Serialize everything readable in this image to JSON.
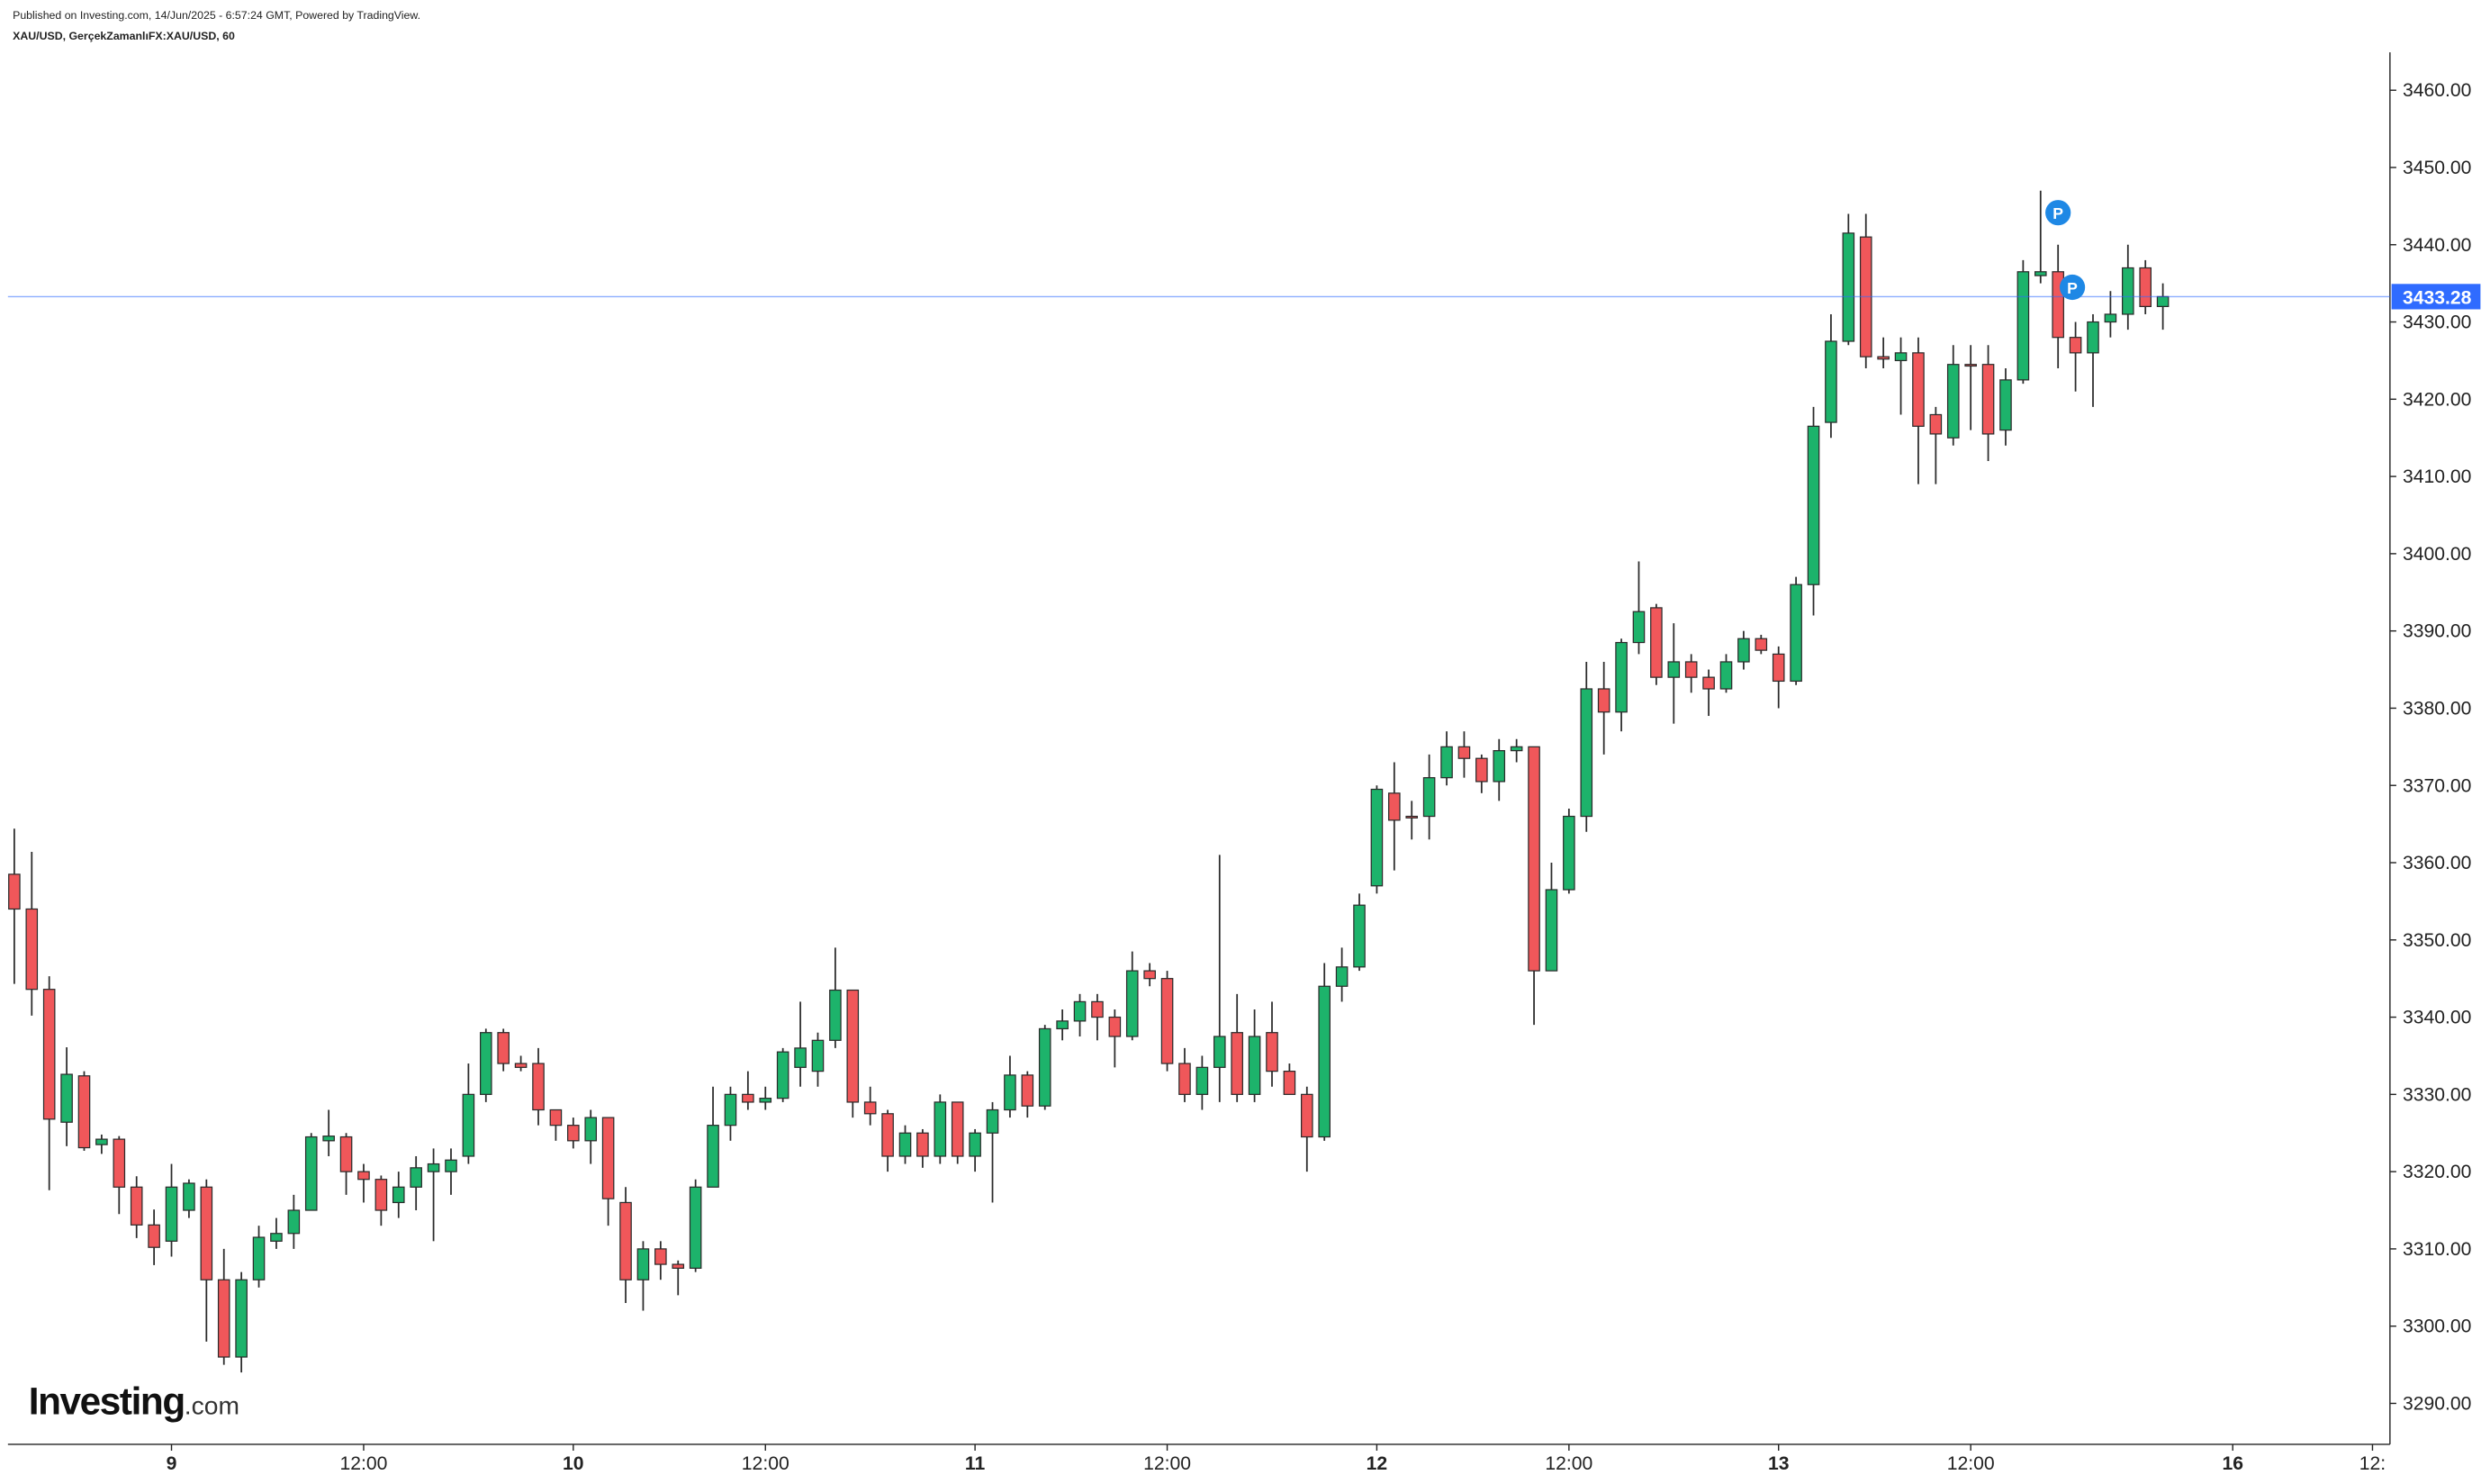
{
  "chart_data": {
    "type": "candlestick",
    "publisher_line": "Published on Investing.com, 14/Jun/2025 - 6:57:24 GMT, Powered by TradingView.",
    "symbol_line": "XAU/USD, GerçekZamanlıFX:XAU/USD, 60",
    "logo": {
      "brand": "Investing",
      "suffix": ".com"
    },
    "markers": [
      {
        "text": "P"
      },
      {
        "text": "P"
      }
    ],
    "up_color": "#1db36b",
    "down_color": "#f0575a",
    "last_price_color": "#2f6bff",
    "ylim": [
      3284.7,
      3464.9
    ],
    "yticks": [
      {
        "value": 3290,
        "label": "3290.00"
      },
      {
        "value": 3300,
        "label": "3300.00"
      },
      {
        "value": 3310,
        "label": "3310.00"
      },
      {
        "value": 3320,
        "label": "3320.00"
      },
      {
        "value": 3330,
        "label": "3330.00"
      },
      {
        "value": 3340,
        "label": "3340.00"
      },
      {
        "value": 3350,
        "label": "3350.00"
      },
      {
        "value": 3360,
        "label": "3360.00"
      },
      {
        "value": 3370,
        "label": "3370.00"
      },
      {
        "value": 3380,
        "label": "3380.00"
      },
      {
        "value": 3390,
        "label": "3390.00"
      },
      {
        "value": 3400,
        "label": "3400.00"
      },
      {
        "value": 3410,
        "label": "3410.00"
      },
      {
        "value": 3420,
        "label": "3420.00"
      },
      {
        "value": 3430,
        "label": "3430.00"
      },
      {
        "value": 3440,
        "label": "3440.00"
      },
      {
        "value": 3450,
        "label": "3450.00"
      },
      {
        "value": 3460,
        "label": "3460.00"
      }
    ],
    "categories": [
      null,
      null,
      null,
      null,
      null,
      null,
      null,
      null,
      null,
      "9",
      null,
      null,
      null,
      null,
      null,
      null,
      null,
      null,
      null,
      null,
      "12:00",
      null,
      null,
      null,
      null,
      null,
      null,
      null,
      null,
      null,
      null,
      null,
      "10",
      null,
      null,
      null,
      null,
      null,
      null,
      null,
      null,
      null,
      null,
      "12:00",
      null,
      null,
      null,
      null,
      null,
      null,
      null,
      null,
      null,
      null,
      null,
      "11",
      null,
      null,
      null,
      null,
      null,
      null,
      null,
      null,
      null,
      null,
      "12:00",
      null,
      null,
      null,
      null,
      null,
      null,
      null,
      null,
      null,
      null,
      null,
      "12",
      null,
      null,
      null,
      null,
      null,
      null,
      null,
      null,
      null,
      null,
      "12:00",
      null,
      null,
      null,
      null,
      null,
      null,
      null,
      null,
      null,
      null,
      null,
      "13",
      null,
      null,
      null,
      null,
      null,
      null,
      null,
      null,
      null,
      null,
      "12:00",
      null,
      null,
      null,
      null,
      null,
      null,
      null,
      null,
      null,
      null,
      null,
      null,
      null,
      null,
      "16",
      null,
      null,
      null,
      null,
      null,
      null,
      null,
      "12:",
      null
    ],
    "open": [
      3358.5,
      3354,
      3343.6,
      3326.4,
      3332.4,
      3323.5,
      3324.2,
      3318,
      3313.1,
      3311,
      3315,
      3318,
      3306,
      3296,
      3306,
      3311,
      3312,
      3315,
      3324,
      3324.5,
      3320,
      3319,
      3316,
      3318,
      3320,
      3320,
      3322,
      3330,
      3338,
      3334,
      3334,
      3328,
      3326,
      3324,
      3327,
      3316,
      3306,
      3310,
      3308,
      3307.5,
      3318,
      3326,
      3330,
      3329,
      3329.5,
      3333.5,
      3333,
      3337,
      3343.5,
      3329,
      3327.5,
      3322,
      3325,
      3322,
      3329,
      3322,
      3325,
      3328,
      3332.5,
      3328.5,
      3338.5,
      3339.5,
      3342,
      3340,
      3337.5,
      3346,
      3345,
      3334,
      3330,
      3333.5,
      3338,
      3330,
      3338,
      3333,
      3330,
      3324.5,
      3344,
      3346.5,
      3357,
      3369,
      3366,
      3366,
      3371,
      3375,
      3373.5,
      3370.5,
      3374.5,
      3375,
      3346,
      3356.5,
      3366,
      3382.5,
      3379.5,
      3388.5,
      3393,
      3384,
      3386,
      3384,
      3382.5,
      3386,
      3389,
      3387,
      3383.5,
      3396,
      3417,
      3427.5,
      3441,
      3425.5,
      3425,
      3426,
      3418,
      3415,
      3424.5,
      3424.5,
      3416,
      3422.5,
      3436,
      3436.5,
      3428,
      3426,
      3430,
      3431,
      3437,
      3432,
      null,
      null,
      null,
      null,
      null,
      null,
      null,
      null,
      null,
      null,
      null,
      null,
      null
    ],
    "high": [
      3364.4,
      3361.4,
      3345.3,
      3336.1,
      3333,
      3324.8,
      3324.6,
      3319.4,
      3315.1,
      3321,
      3319,
      3319,
      3310,
      3307,
      3313,
      3314,
      3317,
      3325,
      3328,
      3325,
      3321,
      3319.5,
      3320,
      3322,
      3323,
      3323,
      3334,
      3338.5,
      3338.5,
      3335,
      3336,
      3328,
      3327,
      3328,
      3327,
      3318,
      3311,
      3311,
      3308.5,
      3319,
      3331,
      3331,
      3333,
      3331,
      3336,
      3342,
      3338,
      3349,
      3343.5,
      3331,
      3328,
      3326,
      3325.5,
      3330,
      3329,
      3325.5,
      3329,
      3335,
      3333,
      3339,
      3341,
      3343,
      3343,
      3341,
      3348.5,
      3347,
      3346,
      3336,
      3335,
      3361,
      3343,
      3341,
      3342,
      3334,
      3331,
      3347,
      3349,
      3356,
      3370,
      3373,
      3368,
      3374,
      3377,
      3377,
      3374,
      3376,
      3376,
      3375,
      3360,
      3367,
      3386,
      3386,
      3389,
      3399,
      3393.5,
      3391,
      3387,
      3385,
      3387,
      3390,
      3389.5,
      3388,
      3397,
      3419,
      3431,
      3444,
      3444,
      3428,
      3428,
      3428,
      3419,
      3427,
      3427,
      3427,
      3424,
      3438,
      3447,
      3440,
      3430,
      3431,
      3434,
      3440,
      3438,
      3435,
      null,
      null,
      null,
      null,
      null,
      null,
      null,
      null,
      null,
      null,
      null,
      null,
      null
    ],
    "low": [
      3344.3,
      3340.2,
      3317.6,
      3323.3,
      3322.7,
      3322.3,
      3314.5,
      3311.4,
      3307.9,
      3309,
      3314,
      3298,
      3295,
      3294,
      3305,
      3310,
      3310,
      3315,
      3322,
      3317,
      3316,
      3313,
      3314,
      3315,
      3311,
      3317,
      3321,
      3329,
      3333,
      3333,
      3326,
      3324,
      3323,
      3321,
      3313,
      3303,
      3302,
      3306,
      3304,
      3307,
      3318,
      3324,
      3328,
      3328,
      3329,
      3331,
      3331,
      3336,
      3327,
      3326,
      3320,
      3321,
      3320.5,
      3321,
      3321,
      3320,
      3316,
      3327,
      3327,
      3328,
      3337,
      3337.5,
      3337,
      3333.5,
      3337,
      3344,
      3333,
      3329,
      3328,
      3329,
      3329,
      3329,
      3331,
      3330,
      3320,
      3324,
      3342,
      3346,
      3356,
      3359,
      3363,
      3363,
      3370,
      3371,
      3369,
      3368,
      3373,
      3339,
      3346,
      3356,
      3364,
      3374,
      3377,
      3387,
      3383,
      3378,
      3382,
      3379,
      3382,
      3385,
      3387,
      3380,
      3383,
      3392,
      3415,
      3427,
      3424,
      3424,
      3418,
      3409,
      3409,
      3414,
      3416,
      3412,
      3414,
      3422,
      3435,
      3424,
      3421,
      3419,
      3428,
      3429,
      3431,
      3429,
      null,
      null,
      null,
      null,
      null,
      null,
      null,
      null,
      null,
      null,
      null,
      null,
      null
    ],
    "close": [
      3354,
      3343.6,
      3326.8,
      3332.6,
      3323.1,
      3324.2,
      3318,
      3313.1,
      3310.2,
      3318,
      3318.5,
      3306,
      3296,
      3306,
      3311.5,
      3312,
      3315,
      3324.5,
      3324.6,
      3320,
      3319,
      3315,
      3318,
      3320.5,
      3321,
      3321.5,
      3330,
      3338,
      3334,
      3333.5,
      3328,
      3326,
      3324,
      3327,
      3316.5,
      3306,
      3310,
      3308,
      3307.5,
      3318,
      3326,
      3330,
      3329,
      3329.5,
      3335.5,
      3336,
      3337,
      3343.5,
      3329,
      3327.5,
      3322,
      3325,
      3322,
      3329,
      3322,
      3325,
      3328,
      3332.5,
      3328.5,
      3338.5,
      3339.5,
      3342,
      3340,
      3337.5,
      3346,
      3345,
      3334,
      3330,
      3333.5,
      3337.5,
      3330,
      3337.5,
      3333,
      3330,
      3324.5,
      3344,
      3346.5,
      3354.5,
      3369.5,
      3365.5,
      3365.8,
      3371,
      3375,
      3373.5,
      3370.5,
      3374.5,
      3375,
      3346,
      3356.5,
      3366,
      3382.5,
      3379.5,
      3388.5,
      3392.5,
      3384,
      3386,
      3384,
      3382.5,
      3386,
      3389,
      3387.5,
      3383.5,
      3396,
      3416.5,
      3427.5,
      3441.5,
      3425.5,
      3425.2,
      3426,
      3416.5,
      3415.5,
      3424.5,
      3424.3,
      3415.5,
      3422.5,
      3436.5,
      3436.5,
      3428,
      3426,
      3430,
      3431,
      3437,
      3432,
      3433.28,
      null,
      null,
      null,
      null,
      null,
      null,
      null,
      null,
      null,
      null,
      null,
      null,
      null
    ]
  }
}
